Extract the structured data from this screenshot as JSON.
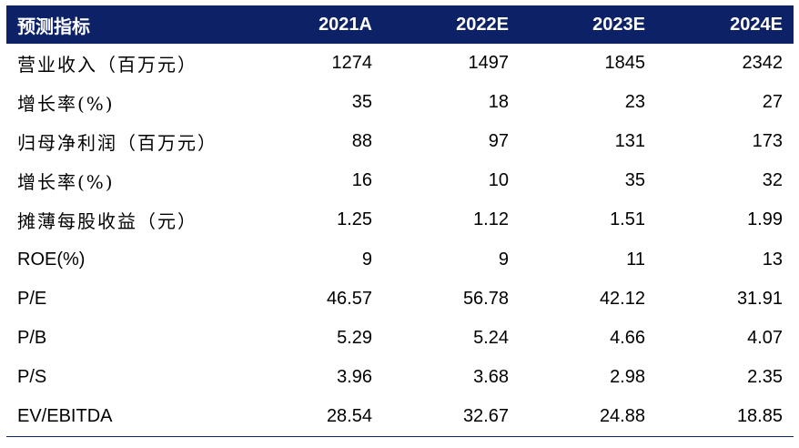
{
  "table": {
    "headers": [
      "预测指标",
      "2021A",
      "2022E",
      "2023E",
      "2024E"
    ],
    "rows": [
      {
        "label": "营业收入（百万元）",
        "latin": false,
        "values": [
          "1274",
          "1497",
          "1845",
          "2342"
        ]
      },
      {
        "label": "增长率(%)",
        "latin": false,
        "values": [
          "35",
          "18",
          "23",
          "27"
        ]
      },
      {
        "label": "归母净利润（百万元）",
        "latin": false,
        "values": [
          "88",
          "97",
          "131",
          "173"
        ]
      },
      {
        "label": "增长率(%)",
        "latin": false,
        "values": [
          "16",
          "10",
          "35",
          "32"
        ]
      },
      {
        "label": "摊薄每股收益（元）",
        "latin": false,
        "values": [
          "1.25",
          "1.12",
          "1.51",
          "1.99"
        ]
      },
      {
        "label": "ROE(%)",
        "latin": true,
        "values": [
          "9",
          "9",
          "11",
          "13"
        ]
      },
      {
        "label": "P/E",
        "latin": true,
        "values": [
          "46.57",
          "56.78",
          "42.12",
          "31.91"
        ]
      },
      {
        "label": "P/B",
        "latin": true,
        "values": [
          "5.29",
          "5.24",
          "4.66",
          "4.07"
        ]
      },
      {
        "label": "P/S",
        "latin": true,
        "values": [
          "3.96",
          "3.68",
          "2.98",
          "2.35"
        ]
      },
      {
        "label": "EV/EBITDA",
        "latin": true,
        "values": [
          "28.54",
          "32.67",
          "24.88",
          "18.85"
        ]
      }
    ]
  }
}
